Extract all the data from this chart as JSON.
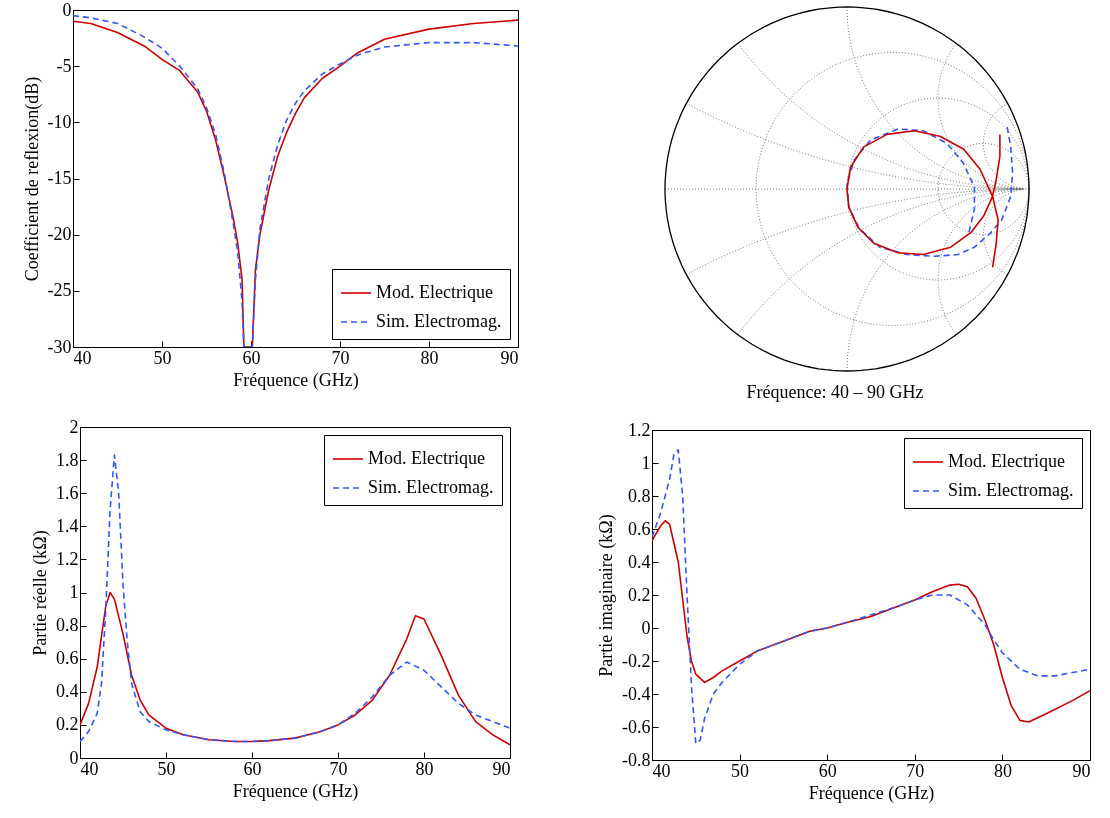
{
  "chart_data": [
    {
      "type": "line",
      "xlabel": "Fréquence (GHz)",
      "ylabel": "Coefficient de reflexion(dB)",
      "xlim": [
        40,
        90
      ],
      "ylim": [
        -30,
        0
      ],
      "xticks": [
        40,
        50,
        60,
        70,
        80,
        90
      ],
      "yticks": [
        -30,
        -25,
        -20,
        -15,
        -10,
        -5,
        0
      ],
      "legend": "bottom right",
      "x": [
        40,
        42,
        45,
        48,
        50,
        52,
        54,
        55,
        56,
        57,
        58,
        58.5,
        59,
        59.2,
        60.15,
        60.5,
        61,
        62,
        63,
        64,
        65,
        66,
        68,
        70,
        72,
        75,
        80,
        85,
        90
      ],
      "series": [
        {
          "name": "Mod. Electrique",
          "color": "#cc0000",
          "line_style": "solid",
          "values": [
            -1.0,
            -1.2,
            -2.0,
            -3.2,
            -4.4,
            -5.4,
            -7.3,
            -9.0,
            -11.5,
            -14.8,
            -18.5,
            -20.7,
            -24,
            -30,
            -30,
            -23.1,
            -20,
            -16,
            -13,
            -10.9,
            -9.2,
            -7.8,
            -6.1,
            -5.0,
            -3.8,
            -2.6,
            -1.7,
            -1.2,
            -0.9
          ]
        },
        {
          "name": "Sim. Electromag.",
          "color": "#3355ff",
          "line_style": "dashed",
          "values": [
            -0.5,
            -0.7,
            -1.2,
            -2.4,
            -3.4,
            -5.0,
            -7.0,
            -8.7,
            -11,
            -14.5,
            -19,
            -21.5,
            -26,
            -30,
            -30,
            -24,
            -19.5,
            -15,
            -12,
            -9.8,
            -8.3,
            -7.2,
            -5.7,
            -4.8,
            -4.0,
            -3.3,
            -2.9,
            -2.9,
            -3.2
          ]
        }
      ]
    },
    {
      "type": "other",
      "xlabel": "Fréquence: 40 – 90 GHz"
    },
    {
      "type": "line",
      "xlabel": "Fréquence (GHz)",
      "ylabel": "Partie réelle (kΩ)",
      "xlim": [
        40,
        90
      ],
      "ylim": [
        0,
        2
      ],
      "xticks": [
        40,
        50,
        60,
        70,
        80,
        90
      ],
      "yticks": [
        0,
        0.2,
        0.4,
        0.6,
        0.8,
        1,
        1.2,
        1.4,
        1.6,
        1.8,
        2
      ],
      "legend": "top right",
      "series": [
        {
          "name": "Mod. Electrique",
          "color": "#cc0000",
          "line_style": "solid",
          "x": [
            40,
            41,
            42,
            43,
            43.5,
            44,
            45,
            46,
            47,
            48,
            50,
            52,
            55,
            58,
            60,
            62,
            65,
            68,
            70,
            72,
            74,
            76,
            78,
            79,
            80,
            82,
            84,
            86,
            88,
            90
          ],
          "values": [
            0.2,
            0.33,
            0.55,
            0.92,
            1.0,
            0.96,
            0.75,
            0.5,
            0.35,
            0.26,
            0.18,
            0.14,
            0.11,
            0.1,
            0.1,
            0.105,
            0.12,
            0.16,
            0.2,
            0.26,
            0.35,
            0.5,
            0.72,
            0.86,
            0.84,
            0.62,
            0.38,
            0.22,
            0.14,
            0.08
          ]
        },
        {
          "name": "Sim. Electromag.",
          "color": "#3355ff",
          "line_style": "dashed",
          "x": [
            40,
            41,
            42,
            42.5,
            43,
            43.5,
            44,
            44.5,
            45,
            45.5,
            46,
            47,
            48,
            50,
            52,
            55,
            58,
            60,
            62,
            65,
            68,
            70,
            72,
            74,
            76,
            78,
            80,
            82,
            84,
            86,
            88,
            90
          ],
          "values": [
            0.1,
            0.16,
            0.27,
            0.45,
            0.9,
            1.5,
            1.83,
            1.6,
            1.05,
            0.7,
            0.45,
            0.28,
            0.22,
            0.17,
            0.14,
            0.11,
            0.1,
            0.1,
            0.105,
            0.12,
            0.16,
            0.2,
            0.27,
            0.37,
            0.5,
            0.58,
            0.53,
            0.43,
            0.33,
            0.26,
            0.22,
            0.18
          ]
        }
      ]
    },
    {
      "type": "line",
      "xlabel": "Fréquence (GHz)",
      "ylabel": "Partie imaginaire (kΩ)",
      "xlim": [
        40,
        90
      ],
      "ylim": [
        -0.8,
        1.2
      ],
      "xticks": [
        40,
        50,
        60,
        70,
        80,
        90
      ],
      "yticks": [
        -0.8,
        -0.6,
        -0.4,
        -0.2,
        0,
        0.2,
        0.4,
        0.6,
        0.8,
        1,
        1.2
      ],
      "legend": "top right",
      "series": [
        {
          "name": "Mod. Electrique",
          "color": "#cc0000",
          "line_style": "solid",
          "x": [
            40,
            41,
            41.5,
            42,
            43,
            44,
            44.5,
            45,
            46,
            47,
            48,
            50,
            52,
            55,
            58,
            60,
            62,
            65,
            68,
            70,
            72,
            74,
            75,
            76,
            77,
            78,
            79,
            80,
            81,
            82,
            83,
            85,
            88,
            90
          ],
          "values": [
            0.53,
            0.62,
            0.65,
            0.63,
            0.4,
            -0.05,
            -0.2,
            -0.28,
            -0.33,
            -0.3,
            -0.26,
            -0.2,
            -0.14,
            -0.08,
            -0.02,
            0.0,
            0.03,
            0.07,
            0.13,
            0.17,
            0.22,
            0.26,
            0.265,
            0.25,
            0.18,
            0.05,
            -0.1,
            -0.3,
            -0.47,
            -0.56,
            -0.57,
            -0.52,
            -0.44,
            -0.38
          ]
        },
        {
          "name": "Sim. Electromag.",
          "color": "#3355ff",
          "line_style": "dashed",
          "x": [
            40,
            41,
            42,
            42.5,
            43,
            43.5,
            44,
            44.5,
            45,
            45.5,
            46,
            47,
            48,
            50,
            52,
            55,
            58,
            60,
            62,
            65,
            68,
            70,
            72,
            74,
            76,
            78,
            79,
            80,
            82,
            84,
            86,
            88,
            90
          ],
          "values": [
            0.55,
            0.7,
            0.9,
            1.05,
            1.08,
            0.8,
            0.2,
            -0.35,
            -0.7,
            -0.68,
            -0.55,
            -0.4,
            -0.33,
            -0.22,
            -0.14,
            -0.08,
            -0.02,
            0.0,
            0.03,
            0.08,
            0.13,
            0.17,
            0.2,
            0.2,
            0.14,
            0.02,
            -0.07,
            -0.15,
            -0.25,
            -0.29,
            -0.29,
            -0.27,
            -0.25
          ]
        }
      ]
    }
  ]
}
